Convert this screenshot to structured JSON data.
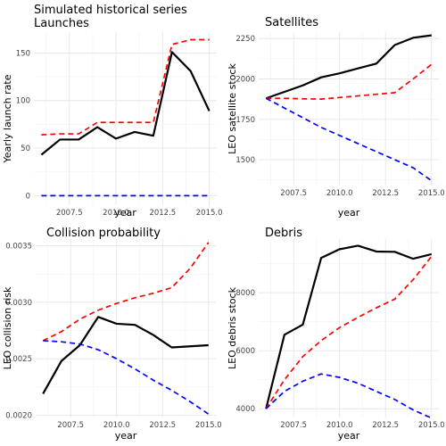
{
  "suptitle": "Simulated historical series",
  "colors": {
    "observed": "#000000",
    "upper": "#ff0000",
    "lower": "#0000ff",
    "grid": "#e6e6e6"
  },
  "chart_data": [
    {
      "type": "line",
      "title": "Launches",
      "xlabel": "year",
      "ylabel": "Yearly launch rate",
      "xlim": [
        2005.6,
        2015.4
      ],
      "ylim": [
        -10,
        172
      ],
      "xticks": [
        2007.5,
        2010.0,
        2012.5,
        2015.0
      ],
      "xtick_labels": [
        "2007.5",
        "2010.0",
        "2012.5",
        "2015.0"
      ],
      "yticks": [
        0,
        50,
        100,
        150
      ],
      "ytick_labels": [
        "0",
        "50",
        "100",
        "150"
      ],
      "grid": true,
      "series": [
        {
          "style": "solid",
          "color": "#000000",
          "x": [
            2006,
            2007,
            2008,
            2009,
            2010,
            2011,
            2012,
            2013,
            2014,
            2015
          ],
          "y": [
            43,
            59,
            59,
            72,
            60,
            67,
            63,
            151,
            131,
            89
          ]
        },
        {
          "style": "dashed",
          "color": "#ff0000",
          "x": [
            2006,
            2007,
            2008,
            2009,
            2010,
            2011,
            2012,
            2013,
            2014,
            2015
          ],
          "y": [
            64,
            65,
            65,
            77,
            77,
            77,
            77,
            159,
            164,
            164
          ]
        },
        {
          "style": "dashed",
          "color": "#0000ff",
          "x": [
            2006,
            2007,
            2008,
            2009,
            2010,
            2011,
            2012,
            2013,
            2014,
            2015
          ],
          "y": [
            0,
            0,
            0,
            0,
            0,
            0,
            0,
            0,
            0,
            0
          ]
        }
      ]
    },
    {
      "type": "line",
      "title": "Satellites",
      "xlabel": "year",
      "ylabel": "LEO satellite stock",
      "xlim": [
        2005.6,
        2015.4
      ],
      "ylim": [
        1340,
        2290
      ],
      "xticks": [
        2007.5,
        2010.0,
        2012.5,
        2015.0
      ],
      "xtick_labels": [
        "2007.5",
        "2010.0",
        "2012.5",
        "2015.0"
      ],
      "yticks": [
        1500,
        1750,
        2000,
        2250
      ],
      "ytick_labels": [
        "1500",
        "1750",
        "2000",
        "2250"
      ],
      "grid": true,
      "series": [
        {
          "style": "solid",
          "color": "#000000",
          "x": [
            2006,
            2007,
            2008,
            2009,
            2010,
            2011,
            2012,
            2013,
            2014,
            2015
          ],
          "y": [
            1880,
            1920,
            1960,
            2010,
            2035,
            2065,
            2095,
            2210,
            2255,
            2270
          ]
        },
        {
          "style": "dashed",
          "color": "#ff0000",
          "x": [
            2006,
            2007,
            2008,
            2009,
            2010,
            2011,
            2012,
            2013,
            2014,
            2015
          ],
          "y": [
            1880,
            1880,
            1877,
            1875,
            1885,
            1895,
            1905,
            1915,
            2000,
            2090
          ]
        },
        {
          "style": "dashed",
          "color": "#0000ff",
          "x": [
            2006,
            2007,
            2008,
            2009,
            2010,
            2011,
            2012,
            2013,
            2014,
            2015
          ],
          "y": [
            1880,
            1820,
            1760,
            1700,
            1650,
            1600,
            1550,
            1500,
            1450,
            1370
          ]
        }
      ]
    },
    {
      "type": "line",
      "title": "Collision probability",
      "xlabel": "year",
      "ylabel": "LEO collision risk",
      "xlim": [
        2005.6,
        2015.4
      ],
      "ylim": [
        0.00198,
        0.00356
      ],
      "xticks": [
        2007.5,
        2010.0,
        2012.5,
        2015.0
      ],
      "xtick_labels": [
        "2007.5",
        "2010.0",
        "2012.5",
        "2015.0"
      ],
      "yticks": [
        0.002,
        0.0025,
        0.003,
        0.0035
      ],
      "ytick_labels": [
        "0.0020",
        "0.0025",
        "0.0030",
        "0.0035"
      ],
      "grid": true,
      "series": [
        {
          "style": "solid",
          "color": "#000000",
          "x": [
            2006,
            2007,
            2008,
            2009,
            2010,
            2011,
            2012,
            2013,
            2014,
            2015
          ],
          "y": [
            0.00219,
            0.00248,
            0.00262,
            0.00287,
            0.00281,
            0.0028,
            0.00271,
            0.0026,
            0.00261,
            0.00262
          ]
        },
        {
          "style": "dashed",
          "color": "#ff0000",
          "x": [
            2006,
            2007,
            2008,
            2009,
            2010,
            2011,
            2012,
            2013,
            2014,
            2015
          ],
          "y": [
            0.00266,
            0.00274,
            0.00285,
            0.00293,
            0.00299,
            0.00304,
            0.00308,
            0.00313,
            0.0033,
            0.00353
          ]
        },
        {
          "style": "dashed",
          "color": "#0000ff",
          "x": [
            2006,
            2007,
            2008,
            2009,
            2010,
            2011,
            2012,
            2013,
            2014,
            2015
          ],
          "y": [
            0.00266,
            0.00265,
            0.00263,
            0.00258,
            0.0025,
            0.00241,
            0.00231,
            0.00222,
            0.00212,
            0.00201
          ]
        }
      ]
    },
    {
      "type": "line",
      "title": "Debris",
      "xlabel": "year",
      "ylabel": "LEO debris stock",
      "xlim": [
        2005.6,
        2015.4
      ],
      "ylim": [
        3700,
        9850
      ],
      "xticks": [
        2007.5,
        2010.0,
        2012.5,
        2015.0
      ],
      "xtick_labels": [
        "2007.5",
        "2010.0",
        "2012.5",
        "2015.0"
      ],
      "yticks": [
        4000,
        6000,
        8000
      ],
      "ytick_labels": [
        "4000",
        "6000",
        "8000"
      ],
      "grid": true,
      "series": [
        {
          "style": "solid",
          "color": "#000000",
          "x": [
            2006,
            2007,
            2008,
            2009,
            2010,
            2011,
            2012,
            2013,
            2014,
            2015
          ],
          "y": [
            4000,
            6550,
            6900,
            9200,
            9500,
            9620,
            9420,
            9410,
            9170,
            9330
          ]
        },
        {
          "style": "dashed",
          "color": "#ff0000",
          "x": [
            2006,
            2007,
            2008,
            2009,
            2010,
            2011,
            2012,
            2013,
            2014,
            2015
          ],
          "y": [
            4000,
            5000,
            5800,
            6350,
            6800,
            7150,
            7480,
            7780,
            8450,
            9250
          ]
        },
        {
          "style": "dashed",
          "color": "#0000ff",
          "x": [
            2006,
            2007,
            2008,
            2009,
            2010,
            2011,
            2012,
            2013,
            2014,
            2015
          ],
          "y": [
            4000,
            4600,
            4950,
            5200,
            5080,
            4880,
            4600,
            4320,
            3960,
            3680
          ]
        }
      ]
    }
  ]
}
